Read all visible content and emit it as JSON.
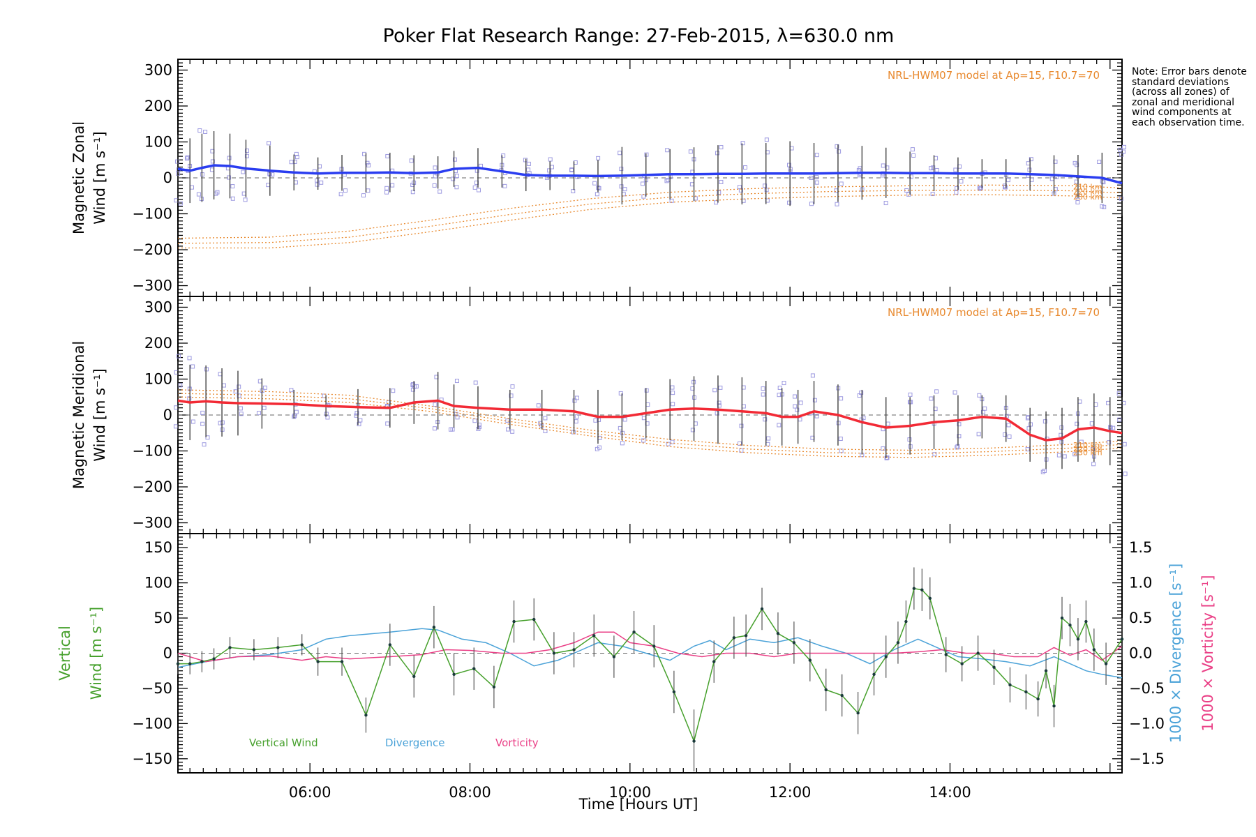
{
  "title": "Poker Flat Research Range: 27-Feb-2015, λ=630.0 nm",
  "note": "Note: Error bars denote standard deviations (across all zones) of zonal and meridional wind components at each observation time.",
  "xaxis": {
    "label": "Time [Hours UT]",
    "range": [
      4.35,
      16.15
    ],
    "ticks": [
      {
        "value": 6,
        "label": "06:00"
      },
      {
        "value": 8,
        "label": "08:00"
      },
      {
        "value": 10,
        "label": "10:00"
      },
      {
        "value": 12,
        "label": "12:00"
      },
      {
        "value": 14,
        "label": "14:00"
      }
    ]
  },
  "colors": {
    "zonal": "#2a3df0",
    "meridional": "#f22a35",
    "vertical": "#46a02c",
    "divergence": "#4aa2d8",
    "vorticity": "#ea3f86",
    "model": "#e8892e",
    "scatter": "#9d9ae0",
    "errorbar": "#333333"
  },
  "chart_data": [
    {
      "type": "line",
      "name": "zonal",
      "ylabel_line1": "Magnetic Zonal",
      "ylabel_line2": "Wind [m s⁻¹]",
      "ylim": [
        -330,
        330
      ],
      "yticks": [
        300,
        200,
        100,
        0,
        -100,
        -200,
        -300
      ],
      "model_label": "NRL-HWM07 model at Ap=15, F10.7=70",
      "model_alt_labels": [
        "210 km",
        "220 km",
        "230 km"
      ],
      "x": [
        4.35,
        4.5,
        4.65,
        4.8,
        5.0,
        5.2,
        5.5,
        5.8,
        6.1,
        6.4,
        6.7,
        7.0,
        7.3,
        7.6,
        7.8,
        8.1,
        8.4,
        8.7,
        9.0,
        9.3,
        9.6,
        9.9,
        10.2,
        10.5,
        10.8,
        11.1,
        11.4,
        11.7,
        12.0,
        12.3,
        12.6,
        12.9,
        13.2,
        13.5,
        13.8,
        14.1,
        14.4,
        14.7,
        15.0,
        15.3,
        15.6,
        15.9,
        16.15
      ],
      "y": [
        25,
        20,
        28,
        35,
        33,
        26,
        20,
        15,
        12,
        14,
        14,
        15,
        13,
        15,
        25,
        28,
        18,
        8,
        6,
        6,
        5,
        6,
        8,
        10,
        10,
        11,
        11,
        12,
        12,
        12,
        13,
        14,
        14,
        13,
        13,
        12,
        12,
        12,
        10,
        8,
        4,
        0,
        -15
      ],
      "err": [
        95,
        90,
        95,
        95,
        90,
        80,
        70,
        50,
        45,
        50,
        55,
        55,
        50,
        45,
        50,
        55,
        45,
        45,
        40,
        40,
        45,
        80,
        60,
        70,
        75,
        80,
        85,
        85,
        90,
        85,
        80,
        75,
        70,
        60,
        50,
        45,
        40,
        40,
        45,
        55,
        60,
        70,
        90
      ],
      "model": [
        {
          "alt": "210 km",
          "x": [
            4.35,
            5.5,
            6.5,
            7.5,
            8.5,
            9.5,
            10.5,
            11.5,
            12.5,
            13.5,
            14.5,
            15.5,
            16.15
          ],
          "y": [
            -168,
            -165,
            -148,
            -118,
            -85,
            -58,
            -40,
            -30,
            -25,
            -22,
            -20,
            -22,
            -28
          ]
        },
        {
          "alt": "220 km",
          "x": [
            4.35,
            5.5,
            6.5,
            7.5,
            8.5,
            9.5,
            10.5,
            11.5,
            12.5,
            13.5,
            14.5,
            15.5,
            16.15
          ],
          "y": [
            -182,
            -180,
            -165,
            -135,
            -102,
            -73,
            -54,
            -44,
            -38,
            -35,
            -34,
            -36,
            -42
          ]
        },
        {
          "alt": "230 km",
          "x": [
            4.35,
            5.5,
            6.5,
            7.5,
            8.5,
            9.5,
            10.5,
            11.5,
            12.5,
            13.5,
            14.5,
            15.5,
            16.15
          ],
          "y": [
            -195,
            -195,
            -180,
            -150,
            -118,
            -88,
            -68,
            -58,
            -52,
            -48,
            -47,
            -50,
            -56
          ]
        }
      ],
      "scatter_seed": 7
    },
    {
      "type": "line",
      "name": "meridional",
      "ylabel_line1": "Magnetic Meridional",
      "ylabel_line2": "Wind [m s⁻¹]",
      "ylim": [
        -330,
        330
      ],
      "yticks": [
        300,
        200,
        100,
        0,
        -100,
        -200,
        -300
      ],
      "model_label": "NRL-HWM07 model at Ap=15, F10.7=70",
      "model_alt_labels": [
        "210 km",
        "220 km",
        "230 km"
      ],
      "x": [
        4.35,
        4.5,
        4.7,
        4.9,
        5.1,
        5.4,
        5.8,
        6.2,
        6.6,
        7.0,
        7.3,
        7.6,
        7.8,
        8.1,
        8.5,
        8.9,
        9.3,
        9.6,
        9.9,
        10.2,
        10.5,
        10.8,
        11.1,
        11.4,
        11.7,
        11.9,
        12.1,
        12.3,
        12.6,
        12.9,
        13.2,
        13.5,
        13.8,
        14.1,
        14.4,
        14.7,
        15.0,
        15.2,
        15.4,
        15.6,
        15.8,
        16.0,
        16.15
      ],
      "y": [
        40,
        35,
        38,
        35,
        33,
        32,
        30,
        25,
        22,
        20,
        35,
        40,
        25,
        20,
        15,
        15,
        10,
        -5,
        -5,
        5,
        15,
        18,
        15,
        10,
        5,
        -5,
        -5,
        10,
        0,
        -20,
        -35,
        -30,
        -20,
        -15,
        -5,
        -10,
        -55,
        -70,
        -65,
        -40,
        -35,
        -45,
        -50
      ],
      "err": [
        110,
        105,
        100,
        95,
        90,
        70,
        40,
        30,
        50,
        55,
        60,
        80,
        60,
        60,
        55,
        55,
        60,
        75,
        65,
        70,
        85,
        90,
        95,
        95,
        90,
        80,
        75,
        85,
        85,
        90,
        85,
        80,
        75,
        70,
        60,
        65,
        75,
        80,
        85,
        90,
        95,
        95,
        100
      ],
      "model": [
        {
          "alt": "210 km",
          "x": [
            4.35,
            5.5,
            6.5,
            7.5,
            8.5,
            9.5,
            10.5,
            11.5,
            12.5,
            13.5,
            14.5,
            15.5,
            16.15
          ],
          "y": [
            70,
            65,
            55,
            25,
            -10,
            -42,
            -68,
            -85,
            -95,
            -98,
            -92,
            -82,
            -72
          ]
        },
        {
          "alt": "220 km",
          "x": [
            4.35,
            5.5,
            6.5,
            7.5,
            8.5,
            9.5,
            10.5,
            11.5,
            12.5,
            13.5,
            14.5,
            15.5,
            16.15
          ],
          "y": [
            60,
            55,
            45,
            18,
            -18,
            -50,
            -78,
            -95,
            -105,
            -108,
            -102,
            -92,
            -82
          ]
        },
        {
          "alt": "230 km",
          "x": [
            4.35,
            5.5,
            6.5,
            7.5,
            8.5,
            9.5,
            10.5,
            11.5,
            12.5,
            13.5,
            14.5,
            15.5,
            16.15
          ],
          "y": [
            50,
            45,
            35,
            10,
            -26,
            -58,
            -88,
            -105,
            -115,
            -118,
            -112,
            -102,
            -92
          ]
        }
      ],
      "scatter_seed": 19
    },
    {
      "type": "line",
      "name": "vertical",
      "ylabel_line1": "Vertical",
      "ylabel_line2": "Wind [m s⁻¹]",
      "ylim": [
        -170,
        170
      ],
      "yticks": [
        150,
        100,
        50,
        0,
        -50,
        -100,
        -150
      ],
      "right_axis": {
        "ylim": [
          -1.7,
          1.7
        ],
        "ticks": [
          1.5,
          1.0,
          0.5,
          0.0,
          -0.5,
          -1.0,
          -1.5
        ],
        "tick_labels": [
          "1.5",
          "1.0",
          "0.5",
          "0.0",
          "−0.5",
          "−1.0",
          "−1.5"
        ],
        "label_divergence": "1000 × Divergence [s⁻¹]",
        "label_vorticity": "1000 × Vorticity [s⁻¹]"
      },
      "legend": [
        "Vertical Wind",
        "Divergence",
        "Vorticity"
      ],
      "vertical": {
        "x": [
          4.35,
          4.5,
          4.65,
          4.8,
          5.0,
          5.3,
          5.6,
          5.9,
          6.1,
          6.4,
          6.7,
          7.0,
          7.3,
          7.55,
          7.8,
          8.05,
          8.3,
          8.55,
          8.8,
          9.05,
          9.3,
          9.55,
          9.8,
          10.05,
          10.3,
          10.55,
          10.8,
          11.05,
          11.3,
          11.45,
          11.65,
          11.85,
          12.05,
          12.25,
          12.45,
          12.65,
          12.85,
          13.05,
          13.2,
          13.35,
          13.45,
          13.55,
          13.65,
          13.75,
          13.95,
          14.15,
          14.35,
          14.55,
          14.75,
          14.95,
          15.1,
          15.2,
          15.3,
          15.4,
          15.5,
          15.6,
          15.7,
          15.8,
          15.95,
          16.15
        ],
        "y": [
          -15,
          -15,
          -12,
          -8,
          8,
          5,
          8,
          12,
          -12,
          -12,
          -88,
          12,
          -33,
          37,
          -30,
          -22,
          -48,
          45,
          48,
          0,
          5,
          25,
          -5,
          30,
          10,
          -55,
          -125,
          -12,
          22,
          25,
          63,
          28,
          15,
          -10,
          -52,
          -60,
          -85,
          -30,
          -5,
          15,
          45,
          92,
          90,
          78,
          -2,
          -15,
          0,
          -20,
          -45,
          -55,
          -65,
          -25,
          -75,
          50,
          40,
          20,
          45,
          5,
          -15,
          20
        ],
        "err": [
          15,
          15,
          15,
          15,
          15,
          15,
          15,
          15,
          20,
          20,
          25,
          30,
          30,
          30,
          30,
          30,
          30,
          30,
          30,
          30,
          25,
          30,
          30,
          30,
          30,
          30,
          45,
          30,
          30,
          30,
          30,
          30,
          30,
          30,
          30,
          30,
          30,
          30,
          30,
          30,
          30,
          30,
          30,
          30,
          25,
          25,
          25,
          25,
          25,
          25,
          25,
          25,
          30,
          30,
          30,
          30,
          30,
          30,
          30,
          30
        ]
      },
      "divergence": {
        "x": [
          4.35,
          4.7,
          5.1,
          5.5,
          5.9,
          6.2,
          6.5,
          7.0,
          7.4,
          7.6,
          7.9,
          8.2,
          8.5,
          8.8,
          9.1,
          9.4,
          9.6,
          9.9,
          10.2,
          10.5,
          10.8,
          11.0,
          11.2,
          11.5,
          11.8,
          12.1,
          12.4,
          12.7,
          13.0,
          13.3,
          13.6,
          13.8,
          14.1,
          14.4,
          14.7,
          15.0,
          15.3,
          15.5,
          15.7,
          15.9,
          16.15
        ],
        "y": [
          -0.2,
          -0.12,
          -0.05,
          -0.02,
          0.05,
          0.2,
          0.25,
          0.3,
          0.35,
          0.33,
          0.2,
          0.15,
          0.0,
          -0.18,
          -0.1,
          0.05,
          0.15,
          0.1,
          0.0,
          -0.1,
          0.1,
          0.18,
          0.05,
          0.2,
          0.15,
          0.22,
          0.1,
          0.0,
          -0.15,
          0.05,
          0.2,
          0.1,
          -0.05,
          -0.08,
          -0.12,
          -0.18,
          -0.05,
          -0.15,
          -0.25,
          -0.3,
          -0.35
        ]
      },
      "vorticity": {
        "x": [
          4.35,
          4.7,
          5.1,
          5.5,
          5.9,
          6.2,
          6.5,
          7.0,
          7.4,
          7.7,
          8.0,
          8.4,
          8.7,
          9.0,
          9.3,
          9.6,
          9.8,
          10.0,
          10.3,
          10.6,
          10.9,
          11.2,
          11.5,
          11.8,
          12.1,
          12.4,
          12.7,
          13.0,
          13.3,
          13.6,
          13.9,
          14.2,
          14.5,
          14.8,
          15.1,
          15.3,
          15.5,
          15.7,
          15.9,
          16.15
        ],
        "y": [
          0.0,
          -0.12,
          -0.05,
          -0.04,
          -0.1,
          -0.05,
          -0.08,
          -0.05,
          -0.02,
          0.05,
          0.04,
          0.0,
          0.0,
          0.05,
          0.15,
          0.3,
          0.3,
          0.15,
          0.1,
          0.0,
          -0.05,
          0.0,
          0.0,
          -0.05,
          0.0,
          0.0,
          0.0,
          0.0,
          0.0,
          0.02,
          0.05,
          0.0,
          0.0,
          -0.05,
          -0.05,
          0.08,
          -0.03,
          0.05,
          -0.1,
          0.1
        ]
      }
    }
  ]
}
